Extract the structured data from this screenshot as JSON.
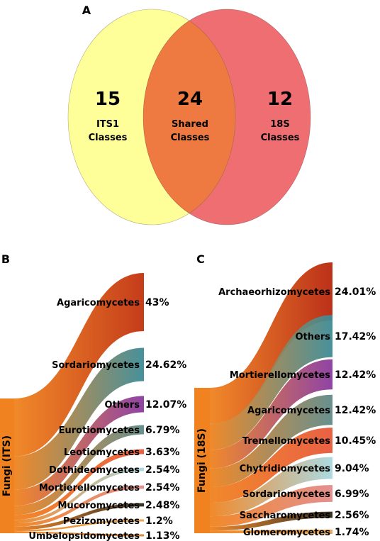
{
  "panels": {
    "a": "A",
    "b": "B",
    "c": "C"
  },
  "venn": {
    "left": {
      "count": "15",
      "line1": "ITS1",
      "line2": "Classes",
      "color": "#ffff99"
    },
    "shared": {
      "count": "24",
      "line1": "Shared",
      "line2": "Classes",
      "color": "#ee7a42"
    },
    "right": {
      "count": "12",
      "line1": "18S",
      "line2": "Classes",
      "color": "#ee6e72"
    }
  },
  "sankey_its": {
    "root": "Fungi (ITS)",
    "root_color": "#f0831f",
    "items": [
      {
        "label": "Agaricomycetes",
        "pct": "43%",
        "value": 43,
        "color": "#c2320e"
      },
      {
        "label": "Sordariomycetes",
        "pct": "24.62%",
        "value": 24.62,
        "color": "#3d8b96"
      },
      {
        "label": "Others",
        "pct": "12.07%",
        "value": 12.07,
        "color": "#8a3aa0"
      },
      {
        "label": "Eurotiomycetes",
        "pct": "6.79%",
        "value": 6.79,
        "color": "#5f8a88"
      },
      {
        "label": "Leotiomycetes",
        "pct": "3.63%",
        "value": 3.63,
        "color": "#e8583a"
      },
      {
        "label": "Dothideomycetes",
        "pct": "2.54%",
        "value": 2.54,
        "color": "#a9d8e0"
      },
      {
        "label": "Mortierellomycetes",
        "pct": "2.54%",
        "value": 2.54,
        "color": "#e28a8a"
      },
      {
        "label": "Mucoromycetes",
        "pct": "2.48%",
        "value": 2.48,
        "color": "#2a2418"
      },
      {
        "label": "Pezizomycetes",
        "pct": "1.2%",
        "value": 1.2,
        "color": "#e9a24b"
      },
      {
        "label": "Umbelopsidomycetes",
        "pct": "1.13%",
        "value": 1.13,
        "color": "#d4863a"
      }
    ]
  },
  "sankey_18s": {
    "root": "Fungi (18S)",
    "root_color": "#f0831f",
    "items": [
      {
        "label": "Archaeorhizomycetes",
        "pct": "24.01%",
        "value": 24.01,
        "color": "#b8260e"
      },
      {
        "label": "Others",
        "pct": "17.42%",
        "value": 17.42,
        "color": "#3d8b96"
      },
      {
        "label": "Mortierellomycetes",
        "pct": "12.42%",
        "value": 12.42,
        "color": "#8a3aa0"
      },
      {
        "label": "Agaricomycetes",
        "pct": "12.42%",
        "value": 12.42,
        "color": "#5f8a88"
      },
      {
        "label": "Tremellomycetes",
        "pct": "10.45%",
        "value": 10.45,
        "color": "#e8583a"
      },
      {
        "label": "Chytridiomycetes",
        "pct": "9.04%",
        "value": 9.04,
        "color": "#a9d8e0"
      },
      {
        "label": "Sordariomycetes",
        "pct": "6.99%",
        "value": 6.99,
        "color": "#e28a8a"
      },
      {
        "label": "Saccharomycetes",
        "pct": "2.56%",
        "value": 2.56,
        "color": "#2a2418"
      },
      {
        "label": "Glomeromycetes",
        "pct": "1.74%",
        "value": 1.74,
        "color": "#e9a24b"
      }
    ]
  }
}
